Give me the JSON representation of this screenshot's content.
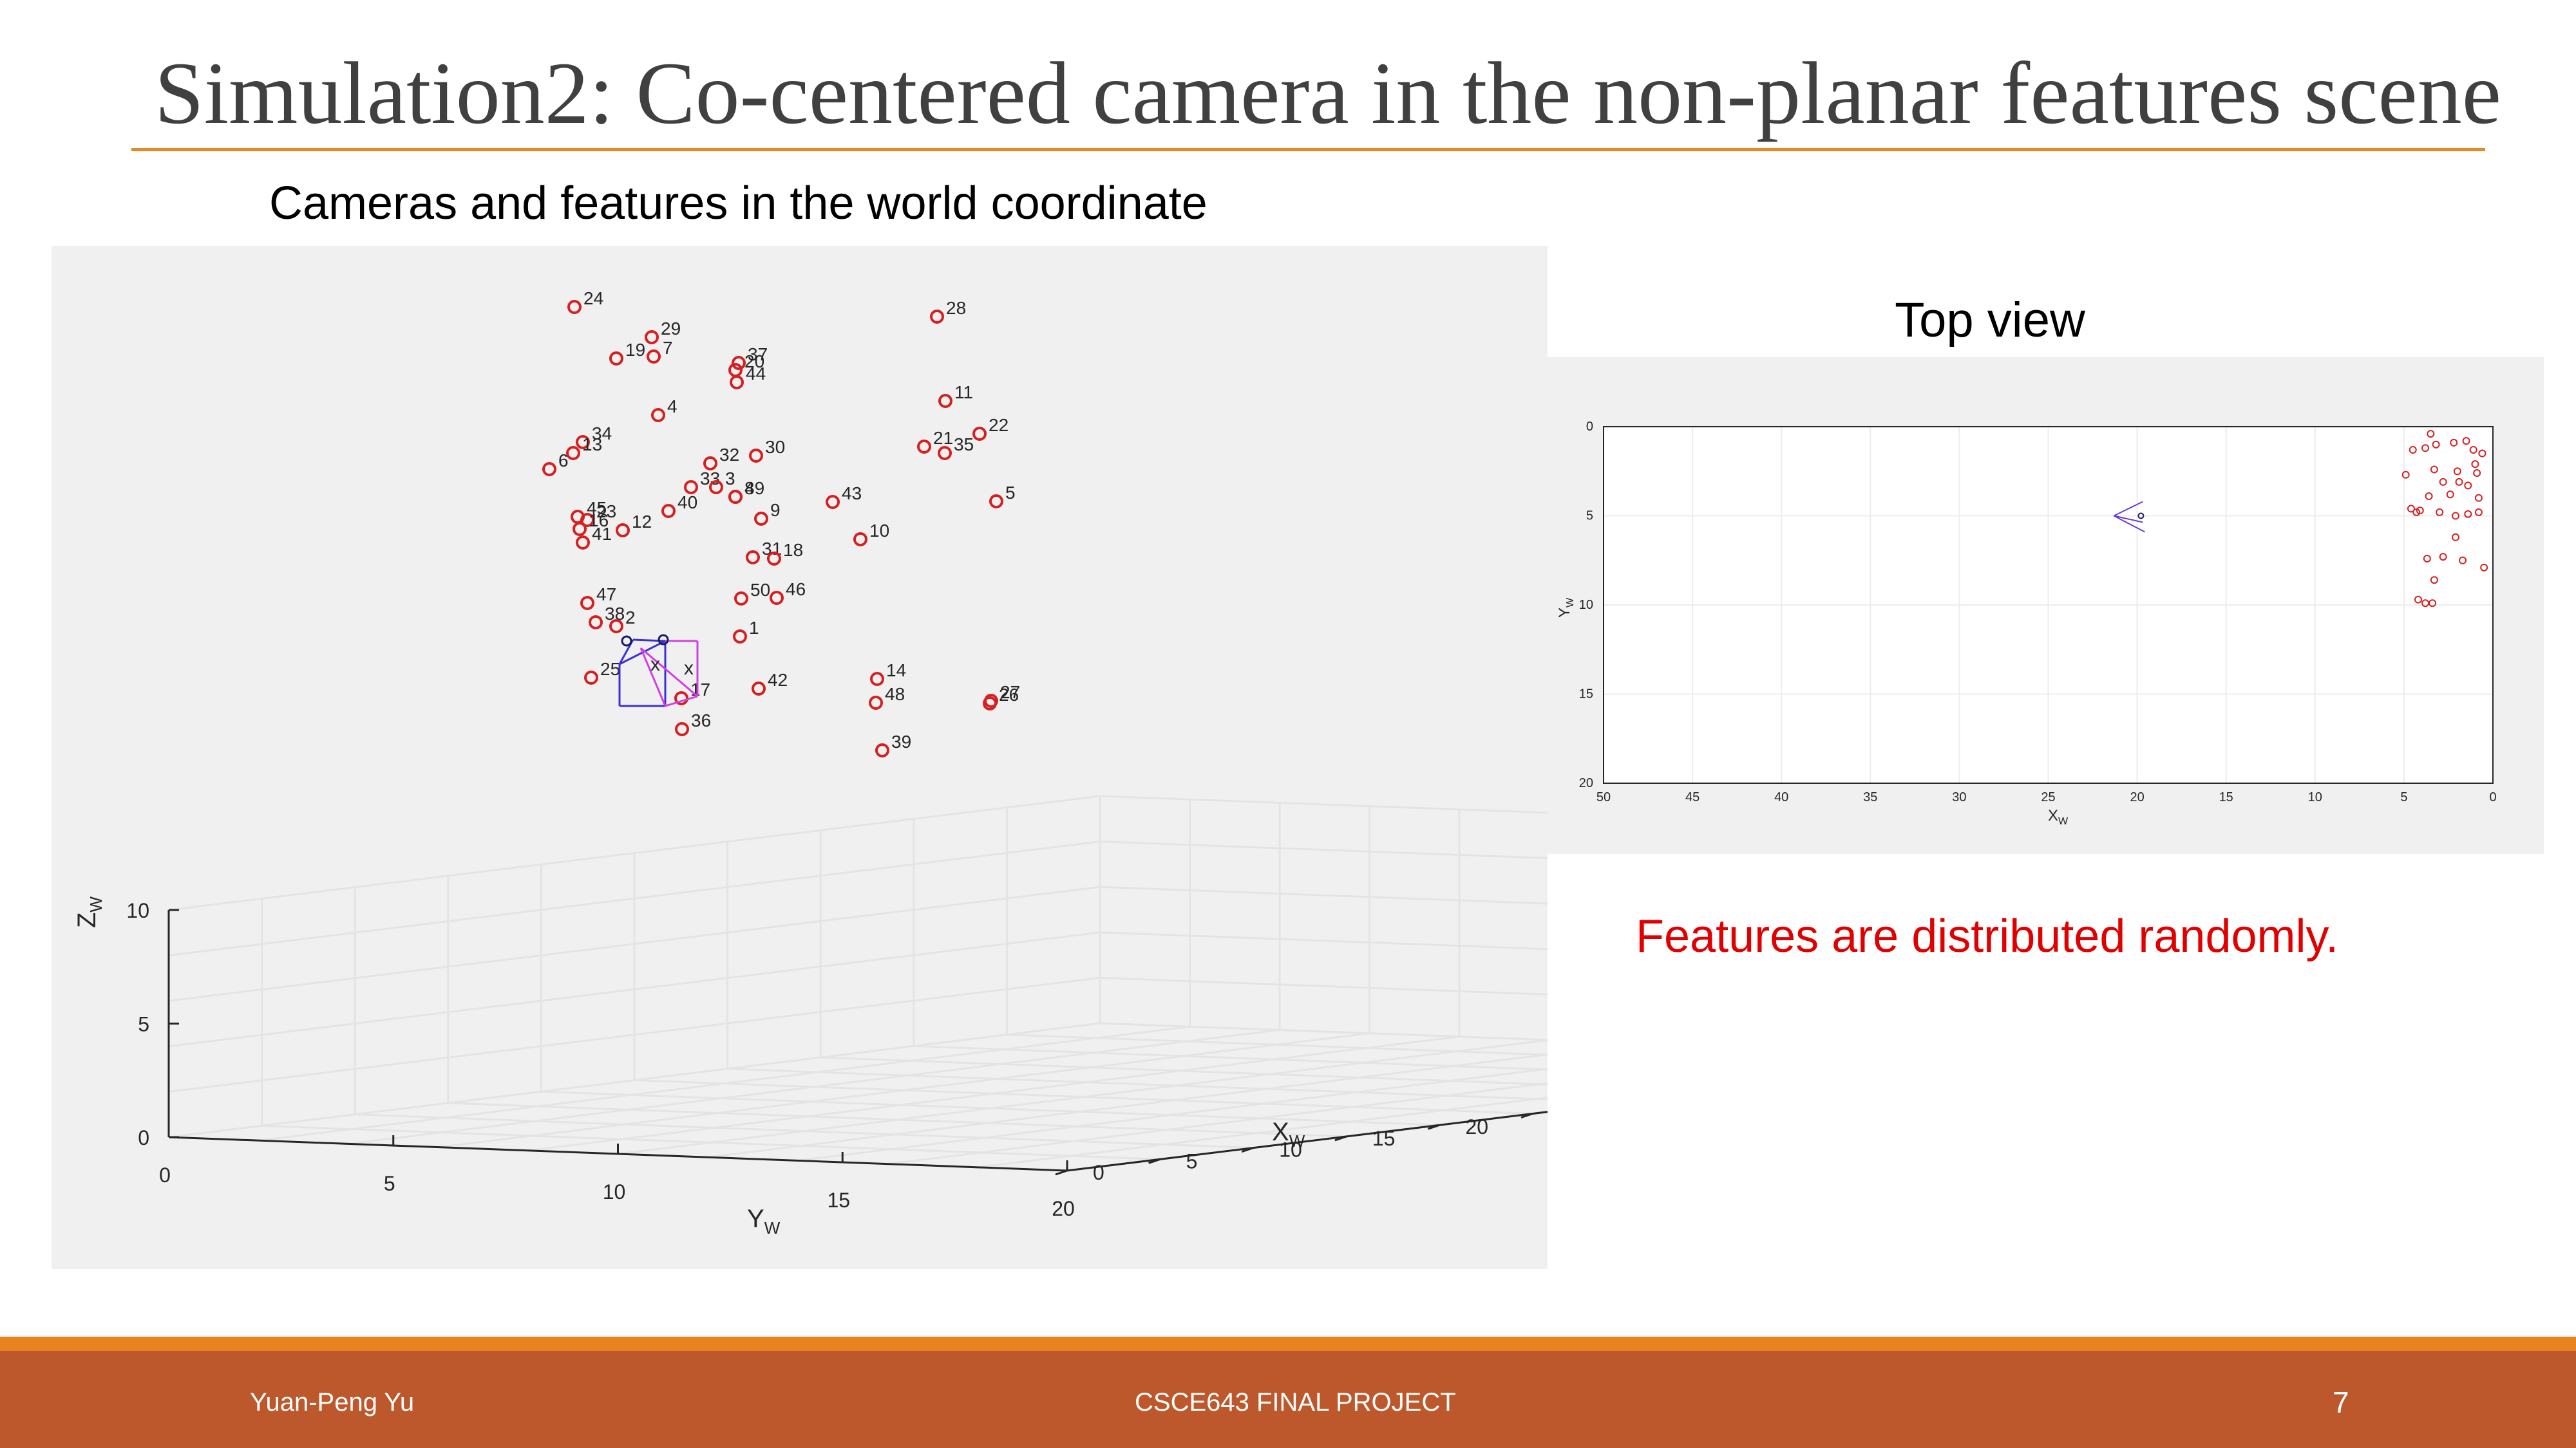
{
  "slide": {
    "title": "Simulation2: Co-centered camera in the non-planar features scene",
    "subtitle": "Cameras and features in the world coordinate",
    "top_view_label": "Top view",
    "note": "Features are distributed randomly.",
    "colors": {
      "title": "#404040",
      "accent": "#e5892b",
      "footer": "#bd582c",
      "note": "#e00000",
      "feature": "#d62020",
      "plot_bg": "#f0f0f0"
    }
  },
  "footer": {
    "author": "Yuan-Peng Yu",
    "course": "CSCE643  FINAL PROJECT",
    "page": "7"
  },
  "chart_data": [
    {
      "type": "scatter",
      "view": "3d",
      "title": "",
      "xlabel": "X_W",
      "ylabel": "Y_W",
      "zlabel": "Z_W",
      "xlim": [
        0,
        50
      ],
      "ylim": [
        0,
        20
      ],
      "zlim": [
        0,
        10
      ],
      "x_ticks": [
        "0",
        "5",
        "10",
        "15",
        "20",
        "25",
        "30",
        "35",
        "40",
        "45",
        "50"
      ],
      "y_ticks": [
        "0",
        "5",
        "10",
        "15",
        "20"
      ],
      "z_ticks": [
        "0",
        "5",
        "10"
      ],
      "grid": true,
      "marker": "o",
      "camera_markers": [
        "o",
        "x"
      ],
      "labeled_points": [
        {
          "label": "24"
        },
        {
          "label": "29"
        },
        {
          "label": "19"
        },
        {
          "label": "7"
        },
        {
          "label": "20"
        },
        {
          "label": "37"
        },
        {
          "label": "44"
        },
        {
          "label": "28"
        },
        {
          "label": "11"
        },
        {
          "label": "22"
        },
        {
          "label": "4"
        },
        {
          "label": "34"
        },
        {
          "label": "13"
        },
        {
          "label": "6"
        },
        {
          "label": "21"
        },
        {
          "label": "35"
        },
        {
          "label": "30"
        },
        {
          "label": "32"
        },
        {
          "label": "33"
        },
        {
          "label": "3"
        },
        {
          "label": "8"
        },
        {
          "label": "49"
        },
        {
          "label": "40"
        },
        {
          "label": "9"
        },
        {
          "label": "43"
        },
        {
          "label": "5"
        },
        {
          "label": "45"
        },
        {
          "label": "23"
        },
        {
          "label": "16"
        },
        {
          "label": "41"
        },
        {
          "label": "12"
        },
        {
          "label": "10"
        },
        {
          "label": "31"
        },
        {
          "label": "18"
        },
        {
          "label": "50"
        },
        {
          "label": "46"
        },
        {
          "label": "47"
        },
        {
          "label": "38"
        },
        {
          "label": "2"
        },
        {
          "label": "1"
        },
        {
          "label": "25"
        },
        {
          "label": "17"
        },
        {
          "label": "36"
        },
        {
          "label": "42"
        },
        {
          "label": "14"
        },
        {
          "label": "48"
        },
        {
          "label": "27"
        },
        {
          "label": "26"
        },
        {
          "label": "39"
        }
      ]
    },
    {
      "type": "scatter",
      "view": "top",
      "title": "",
      "xlabel": "X_W",
      "ylabel": "Y_W",
      "xlim": [
        50,
        0
      ],
      "ylim": [
        0,
        20
      ],
      "x_ticks": [
        "50",
        "45",
        "40",
        "35",
        "30",
        "25",
        "20",
        "15",
        "10",
        "5",
        "0"
      ],
      "y_ticks": [
        "0",
        "5",
        "10",
        "15",
        "20"
      ],
      "grid": true,
      "camera_position": {
        "x": 19.5,
        "y": 5
      }
    }
  ]
}
